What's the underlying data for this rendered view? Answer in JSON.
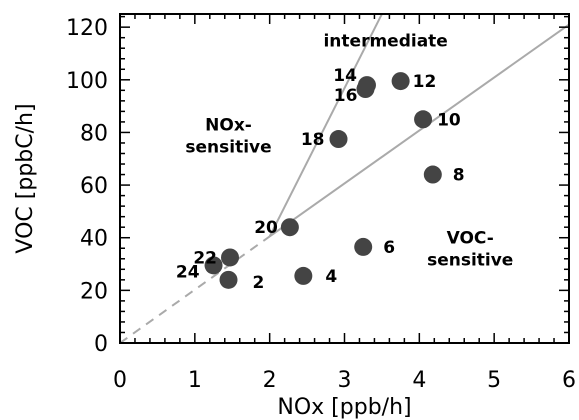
{
  "chart_data": {
    "type": "scatter",
    "xlabel": "NOx [ppb/h]",
    "ylabel": "VOC [ppbC/h]",
    "xlim": [
      0,
      6
    ],
    "ylim": [
      0,
      125
    ],
    "x_ticks": [
      0,
      1,
      2,
      3,
      4,
      5,
      6
    ],
    "y_ticks": [
      0,
      20,
      40,
      60,
      80,
      100,
      120
    ],
    "grid": false,
    "colors": {
      "marker": "#444444",
      "line": "#aaaaaa",
      "axis": "#000000"
    },
    "points": [
      {
        "label": "2",
        "x": 1.45,
        "y": 24
      },
      {
        "label": "4",
        "x": 2.45,
        "y": 25.5
      },
      {
        "label": "6",
        "x": 3.25,
        "y": 36.5
      },
      {
        "label": "8",
        "x": 4.18,
        "y": 64
      },
      {
        "label": "10",
        "x": 4.05,
        "y": 85
      },
      {
        "label": "12",
        "x": 3.75,
        "y": 99.5
      },
      {
        "label": "14",
        "x": 3.3,
        "y": 98
      },
      {
        "label": "16",
        "x": 3.28,
        "y": 96.5
      },
      {
        "label": "18",
        "x": 2.92,
        "y": 77.5
      },
      {
        "label": "20",
        "x": 2.27,
        "y": 44
      },
      {
        "label": "22",
        "x": 1.47,
        "y": 32.5
      },
      {
        "label": "24",
        "x": 1.25,
        "y": 29.5
      }
    ],
    "lines": [
      {
        "kind": "dashed",
        "from": [
          0,
          0
        ],
        "to": [
          2.0,
          40.5
        ]
      },
      {
        "kind": "solid",
        "from": [
          2.0,
          40.5
        ],
        "to": [
          6.0,
          121
        ]
      },
      {
        "kind": "solid",
        "from": [
          2.0,
          40.5
        ],
        "to": [
          3.5,
          125
        ]
      }
    ],
    "regions": [
      {
        "lines": [
          "intermediate"
        ],
        "x": 3.55,
        "y": 115
      },
      {
        "lines": [
          "NOx-",
          "sensitive"
        ],
        "x": 1.45,
        "y": 83
      },
      {
        "lines": [
          "VOC-",
          "sensitive"
        ],
        "x": 4.68,
        "y": 40
      }
    ]
  }
}
